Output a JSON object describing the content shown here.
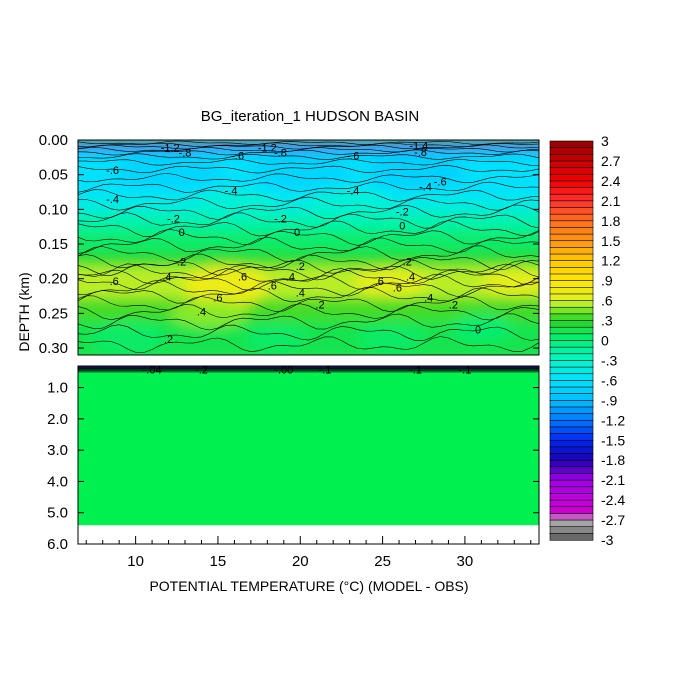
{
  "chart_data": {
    "type": "heatmap",
    "title": "BG_iteration_1 HUDSON BASIN",
    "xlabel_pre": "POTENTIAL TEMPERATURE (",
    "xlabel_unit": "°C",
    "xlabel_post": ") (MODEL - OBS)",
    "ylabel": "DEPTH (km)",
    "x_ticks": [
      10,
      15,
      20,
      25,
      30
    ],
    "x_range": [
      6.5,
      34.5
    ],
    "upper_panel": {
      "y_range": [
        0.0,
        0.31
      ],
      "y_ticks": [
        "0.00",
        "0.05",
        "0.10",
        "0.15",
        "0.20",
        "0.25",
        "0.30"
      ],
      "y_tick_values": [
        0.0,
        0.05,
        0.1,
        0.15,
        0.2,
        0.25,
        0.3
      ],
      "contour_labels": [
        {
          "text": "-1.2",
          "x": 12.1,
          "y": 0.011
        },
        {
          "text": "-.8",
          "x": 13.0,
          "y": 0.018
        },
        {
          "text": "-1.2",
          "x": 18.0,
          "y": 0.011
        },
        {
          "text": "-.8",
          "x": 18.8,
          "y": 0.018
        },
        {
          "text": "-1.4",
          "x": 27.2,
          "y": 0.008
        },
        {
          "text": "-.8",
          "x": 27.3,
          "y": 0.017
        },
        {
          "text": "-.6",
          "x": 16.2,
          "y": 0.022
        },
        {
          "text": "-.6",
          "x": 8.6,
          "y": 0.043
        },
        {
          "text": "-.6",
          "x": 23.2,
          "y": 0.022
        },
        {
          "text": "-.6",
          "x": 28.5,
          "y": 0.06
        },
        {
          "text": "-.4",
          "x": 8.6,
          "y": 0.085
        },
        {
          "text": "-.4",
          "x": 15.8,
          "y": 0.073
        },
        {
          "text": "-.4",
          "x": 23.2,
          "y": 0.073
        },
        {
          "text": "-.4",
          "x": 27.6,
          "y": 0.067
        },
        {
          "text": "-.2",
          "x": 12.3,
          "y": 0.113
        },
        {
          "text": "-.2",
          "x": 18.8,
          "y": 0.113
        },
        {
          "text": "-.2",
          "x": 26.2,
          "y": 0.103
        },
        {
          "text": "0",
          "x": 12.8,
          "y": 0.133
        },
        {
          "text": "0",
          "x": 19.8,
          "y": 0.133
        },
        {
          "text": "0",
          "x": 26.2,
          "y": 0.123
        },
        {
          "text": ".2",
          "x": 12.8,
          "y": 0.175
        },
        {
          "text": ".2",
          "x": 20.0,
          "y": 0.182
        },
        {
          "text": ".2",
          "x": 26.5,
          "y": 0.175
        },
        {
          "text": ".6",
          "x": 8.7,
          "y": 0.203
        },
        {
          "text": ".4",
          "x": 11.9,
          "y": 0.197
        },
        {
          "text": ".6",
          "x": 16.5,
          "y": 0.197
        },
        {
          "text": ".4",
          "x": 19.4,
          "y": 0.197
        },
        {
          "text": ".6",
          "x": 18.3,
          "y": 0.21
        },
        {
          "text": ".6",
          "x": 24.8,
          "y": 0.203
        },
        {
          "text": ".4",
          "x": 26.7,
          "y": 0.197
        },
        {
          "text": ".6",
          "x": 25.9,
          "y": 0.213
        },
        {
          "text": ".6",
          "x": 15.0,
          "y": 0.227
        },
        {
          "text": ".4",
          "x": 20.0,
          "y": 0.22
        },
        {
          "text": ".4",
          "x": 14.0,
          "y": 0.247
        },
        {
          "text": ".2",
          "x": 21.2,
          "y": 0.237
        },
        {
          "text": ".4",
          "x": 27.8,
          "y": 0.227
        },
        {
          "text": ".2",
          "x": 12.0,
          "y": 0.287
        },
        {
          "text": ".2",
          "x": 29.3,
          "y": 0.237
        },
        {
          "text": "0",
          "x": 30.8,
          "y": 0.273
        }
      ]
    },
    "lower_panel": {
      "y_range": [
        0.31,
        6.0
      ],
      "y_ticks": [
        "1.0",
        "2.0",
        "3.0",
        "4.0",
        "5.0",
        "6.0"
      ],
      "y_tick_values": [
        1.0,
        2.0,
        3.0,
        4.0,
        5.0,
        6.0
      ],
      "data_bottom_depth": 5.4,
      "contour_labels": [
        {
          "text": "-.04",
          "x": 11.0,
          "y": 0.42
        },
        {
          "text": "-.2",
          "x": 14.0,
          "y": 0.42
        },
        {
          "text": "-.00",
          "x": 19.0,
          "y": 0.42
        },
        {
          "text": "-.1",
          "x": 21.5,
          "y": 0.42
        },
        {
          "text": "-.1",
          "x": 27.0,
          "y": 0.42
        },
        {
          "text": "-.1",
          "x": 30.0,
          "y": 0.42
        }
      ]
    },
    "colorbar": {
      "labels": [
        "3",
        "2.7",
        "2.4",
        "2.1",
        "1.8",
        "1.5",
        "1.2",
        ".9",
        ".6",
        ".3",
        "0",
        "-.3",
        "-.6",
        "-.9",
        "-1.2",
        "-1.5",
        "-1.8",
        "-2.1",
        "-2.4",
        "-2.7",
        "-3"
      ],
      "values": [
        3,
        2.7,
        2.4,
        2.1,
        1.8,
        1.5,
        1.2,
        0.9,
        0.6,
        0.3,
        0,
        -0.3,
        -0.6,
        -0.9,
        -1.2,
        -1.5,
        -1.8,
        -2.1,
        -2.4,
        -2.7,
        -3
      ]
    }
  }
}
